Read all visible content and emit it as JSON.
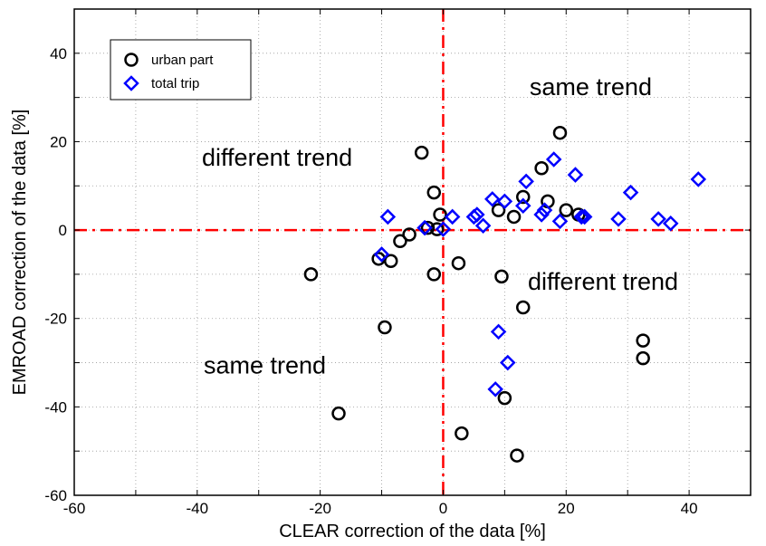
{
  "chart_data": {
    "type": "scatter",
    "xlabel": "CLEAR correction of the data [%]",
    "ylabel": "EMROAD correction of the data [%]",
    "xlim": [
      -60,
      50
    ],
    "ylim": [
      -60,
      50
    ],
    "xticks": [
      -60,
      -40,
      -20,
      0,
      20,
      40
    ],
    "yticks": [
      -60,
      -40,
      -20,
      0,
      20,
      40
    ],
    "grid": true,
    "legend_position": "top-left",
    "reference_lines": {
      "x": 0,
      "y": 0,
      "color": "#ff0000",
      "style": "dashed"
    },
    "annotations": [
      {
        "text": "same trend",
        "x": 24,
        "y": 32
      },
      {
        "text": "different trend",
        "x": -27,
        "y": 16
      },
      {
        "text": "different trend",
        "x": 26,
        "y": -12
      },
      {
        "text": "same trend",
        "x": -29,
        "y": -31
      }
    ],
    "series": [
      {
        "name": "urban part",
        "marker": "circle",
        "color": "#000000",
        "points": [
          [
            -21.5,
            -10
          ],
          [
            -17,
            -41.5
          ],
          [
            -10.5,
            -6.5
          ],
          [
            -9.5,
            -22
          ],
          [
            -8.5,
            -7
          ],
          [
            -7,
            -2.5
          ],
          [
            -5.5,
            -1
          ],
          [
            -3.5,
            17.5
          ],
          [
            -2.5,
            0.5
          ],
          [
            -1.5,
            8.5
          ],
          [
            -1.5,
            -10
          ],
          [
            -1,
            0.2
          ],
          [
            -0.5,
            3.5
          ],
          [
            2.5,
            -7.5
          ],
          [
            3,
            -46
          ],
          [
            9,
            4.5
          ],
          [
            9.5,
            -10.5
          ],
          [
            10,
            -38
          ],
          [
            11.5,
            3
          ],
          [
            12,
            -51
          ],
          [
            13,
            7.5
          ],
          [
            13,
            -17.5
          ],
          [
            16,
            14
          ],
          [
            17,
            6.5
          ],
          [
            19,
            22
          ],
          [
            20,
            4.5
          ],
          [
            22,
            3.5
          ],
          [
            32.5,
            -25
          ],
          [
            32.5,
            -29
          ]
        ]
      },
      {
        "name": "total trip",
        "marker": "diamond",
        "color": "#0000ff",
        "points": [
          [
            -10,
            -5.5
          ],
          [
            -9,
            3
          ],
          [
            -3,
            0.5
          ],
          [
            0,
            0.2
          ],
          [
            1.5,
            3
          ],
          [
            5,
            3
          ],
          [
            5.5,
            3.5
          ],
          [
            6.5,
            1
          ],
          [
            8,
            7
          ],
          [
            8.5,
            -36
          ],
          [
            9,
            -23
          ],
          [
            10,
            6.5
          ],
          [
            10.5,
            -30
          ],
          [
            13,
            5.5
          ],
          [
            13.5,
            11
          ],
          [
            16,
            3.5
          ],
          [
            16.5,
            4.5
          ],
          [
            18,
            16
          ],
          [
            19,
            2
          ],
          [
            21.5,
            12.5
          ],
          [
            22.5,
            3
          ],
          [
            23,
            3
          ],
          [
            28.5,
            2.5
          ],
          [
            30.5,
            8.5
          ],
          [
            35,
            2.5
          ],
          [
            37,
            1.5
          ],
          [
            41.5,
            11.5
          ]
        ]
      }
    ]
  }
}
